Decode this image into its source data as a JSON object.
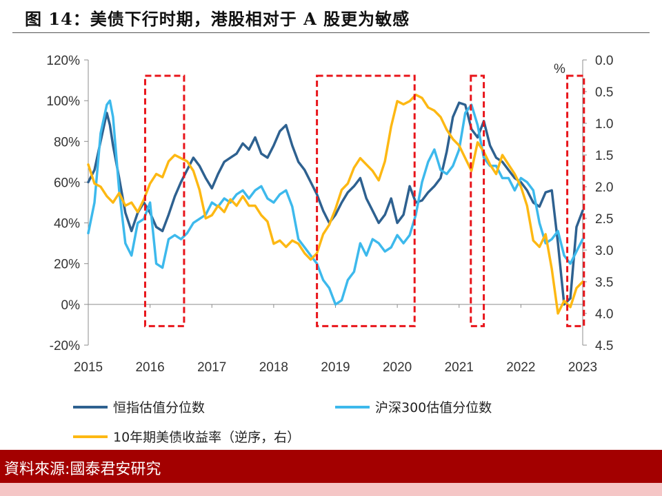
{
  "title": "图 14：美债下行时期，港股相对于 A 股更为敏感",
  "source": "資料來源:國泰君安研究",
  "chart_data": {
    "type": "line",
    "x_ticks": [
      "2015",
      "2016",
      "2017",
      "2018",
      "2019",
      "2020",
      "2021",
      "2022",
      "2023"
    ],
    "y_left": {
      "ticks": [
        "-20%",
        "0%",
        "20%",
        "40%",
        "60%",
        "80%",
        "100%",
        "120%"
      ],
      "ylim": [
        -20,
        120
      ]
    },
    "y_right": {
      "unit": "%",
      "ticks": [
        "0.0",
        "0.5",
        "1.0",
        "1.5",
        "2.0",
        "2.5",
        "3.0",
        "3.5",
        "4.0",
        "4.5"
      ],
      "ylim": [
        0,
        4.5
      ],
      "inverted": true
    },
    "grid": false,
    "legend_position": "bottom",
    "series": [
      {
        "name": "恒指估值分位数",
        "axis": "left",
        "color": "#2e6190",
        "x": [
          2015.0,
          2015.1,
          2015.2,
          2015.3,
          2015.35,
          2015.4,
          2015.5,
          2015.6,
          2015.7,
          2015.8,
          2015.9,
          2016.0,
          2016.1,
          2016.2,
          2016.3,
          2016.4,
          2016.5,
          2016.6,
          2016.7,
          2016.8,
          2016.9,
          2017.0,
          2017.1,
          2017.2,
          2017.3,
          2017.4,
          2017.5,
          2017.6,
          2017.7,
          2017.8,
          2017.9,
          2018.0,
          2018.1,
          2018.2,
          2018.3,
          2018.4,
          2018.5,
          2018.6,
          2018.7,
          2018.8,
          2018.9,
          2019.0,
          2019.1,
          2019.2,
          2019.3,
          2019.4,
          2019.5,
          2019.6,
          2019.7,
          2019.8,
          2019.9,
          2020.0,
          2020.1,
          2020.2,
          2020.3,
          2020.4,
          2020.5,
          2020.6,
          2020.7,
          2020.8,
          2020.9,
          2021.0,
          2021.1,
          2021.2,
          2021.3,
          2021.4,
          2021.5,
          2021.6,
          2021.7,
          2021.8,
          2021.9,
          2022.0,
          2022.1,
          2022.2,
          2022.3,
          2022.4,
          2022.5,
          2022.6,
          2022.7,
          2022.8,
          2022.9,
          2023.0
        ],
        "values": [
          60,
          66,
          80,
          94,
          88,
          78,
          62,
          45,
          36,
          45,
          50,
          45,
          38,
          36,
          44,
          53,
          60,
          66,
          72,
          68,
          62,
          57,
          64,
          70,
          72,
          74,
          79,
          76,
          82,
          74,
          72,
          78,
          85,
          88,
          78,
          70,
          66,
          60,
          54,
          46,
          40,
          44,
          50,
          55,
          58,
          62,
          52,
          46,
          40,
          44,
          52,
          40,
          44,
          58,
          50,
          51,
          55,
          58,
          62,
          75,
          92,
          99,
          98,
          86,
          82,
          90,
          78,
          72,
          70,
          66,
          62,
          60,
          56,
          50,
          48,
          55,
          56,
          30,
          0,
          3,
          38,
          46
        ]
      },
      {
        "name": "沪深300估值分位数",
        "axis": "left",
        "color": "#3db9ec",
        "x": [
          2015.0,
          2015.1,
          2015.2,
          2015.3,
          2015.35,
          2015.4,
          2015.5,
          2015.6,
          2015.7,
          2015.8,
          2015.9,
          2016.0,
          2016.1,
          2016.2,
          2016.3,
          2016.4,
          2016.5,
          2016.6,
          2016.7,
          2016.8,
          2016.9,
          2017.0,
          2017.1,
          2017.2,
          2017.3,
          2017.4,
          2017.5,
          2017.6,
          2017.7,
          2017.8,
          2017.9,
          2018.0,
          2018.1,
          2018.2,
          2018.3,
          2018.4,
          2018.5,
          2018.6,
          2018.7,
          2018.8,
          2018.9,
          2019.0,
          2019.1,
          2019.2,
          2019.3,
          2019.4,
          2019.5,
          2019.6,
          2019.7,
          2019.8,
          2019.9,
          2020.0,
          2020.1,
          2020.2,
          2020.3,
          2020.4,
          2020.5,
          2020.6,
          2020.7,
          2020.8,
          2020.9,
          2021.0,
          2021.1,
          2021.2,
          2021.3,
          2021.4,
          2021.5,
          2021.6,
          2021.7,
          2021.8,
          2021.9,
          2022.0,
          2022.1,
          2022.2,
          2022.3,
          2022.4,
          2022.5,
          2022.6,
          2022.7,
          2022.8,
          2022.9,
          2023.0
        ],
        "values": [
          35,
          50,
          84,
          98,
          100,
          92,
          56,
          30,
          24,
          40,
          42,
          50,
          20,
          18,
          32,
          34,
          32,
          35,
          40,
          42,
          44,
          50,
          48,
          52,
          50,
          54,
          56,
          52,
          56,
          58,
          52,
          50,
          54,
          56,
          48,
          32,
          28,
          24,
          20,
          12,
          8,
          0,
          2,
          12,
          16,
          30,
          24,
          32,
          30,
          26,
          28,
          34,
          30,
          34,
          44,
          60,
          70,
          76,
          66,
          64,
          68,
          76,
          94,
          98,
          88,
          72,
          68,
          68,
          62,
          62,
          56,
          62,
          60,
          56,
          40,
          30,
          32,
          36,
          24,
          20,
          26,
          32
        ]
      },
      {
        "name": "10年期美债收益率（逆序，右）",
        "axis": "right",
        "color": "#fdb813",
        "x": [
          2015.0,
          2015.1,
          2015.2,
          2015.3,
          2015.4,
          2015.5,
          2015.6,
          2015.7,
          2015.8,
          2015.9,
          2016.0,
          2016.1,
          2016.2,
          2016.3,
          2016.4,
          2016.5,
          2016.6,
          2016.7,
          2016.8,
          2016.9,
          2017.0,
          2017.1,
          2017.2,
          2017.3,
          2017.4,
          2017.5,
          2017.6,
          2017.7,
          2017.8,
          2017.9,
          2018.0,
          2018.1,
          2018.2,
          2018.3,
          2018.4,
          2018.5,
          2018.6,
          2018.7,
          2018.8,
          2018.9,
          2019.0,
          2019.1,
          2019.2,
          2019.3,
          2019.4,
          2019.5,
          2019.6,
          2019.7,
          2019.8,
          2019.9,
          2020.0,
          2020.1,
          2020.2,
          2020.3,
          2020.4,
          2020.5,
          2020.6,
          2020.7,
          2020.8,
          2020.9,
          2021.0,
          2021.1,
          2021.2,
          2021.3,
          2021.4,
          2021.5,
          2021.6,
          2021.7,
          2021.8,
          2021.9,
          2022.0,
          2022.1,
          2022.2,
          2022.3,
          2022.4,
          2022.5,
          2022.6,
          2022.7,
          2022.8,
          2022.9,
          2023.0
        ],
        "values": [
          1.65,
          1.95,
          2.0,
          2.15,
          2.25,
          2.1,
          2.3,
          2.25,
          2.4,
          2.2,
          1.95,
          1.8,
          1.85,
          1.6,
          1.5,
          1.55,
          1.6,
          1.75,
          2.05,
          2.5,
          2.45,
          2.3,
          2.4,
          2.2,
          2.3,
          2.15,
          2.3,
          2.3,
          2.45,
          2.55,
          2.9,
          2.85,
          2.95,
          2.85,
          2.9,
          3.05,
          3.15,
          3.05,
          2.75,
          2.6,
          2.35,
          2.05,
          1.95,
          1.7,
          1.55,
          1.65,
          1.75,
          1.9,
          1.6,
          1.05,
          0.65,
          0.7,
          0.65,
          0.55,
          0.6,
          0.75,
          0.8,
          0.9,
          1.1,
          1.25,
          1.35,
          1.55,
          1.75,
          1.3,
          1.45,
          1.65,
          1.8,
          1.5,
          1.65,
          1.8,
          2.0,
          2.3,
          2.85,
          2.95,
          2.75,
          3.3,
          4.0,
          3.8,
          3.9,
          3.6,
          3.5
        ]
      }
    ],
    "highlight_boxes": [
      {
        "x": [
          2015.92,
          2016.55
        ],
        "y": [
          0.25,
          4.2
        ]
      },
      {
        "x": [
          2018.7,
          2020.28
        ],
        "y": [
          0.25,
          4.2
        ]
      },
      {
        "x": [
          2021.19,
          2021.4
        ],
        "y": [
          0.25,
          4.2
        ]
      },
      {
        "x": [
          2022.75,
          2023.02
        ],
        "y": [
          0.25,
          4.2
        ]
      }
    ]
  }
}
